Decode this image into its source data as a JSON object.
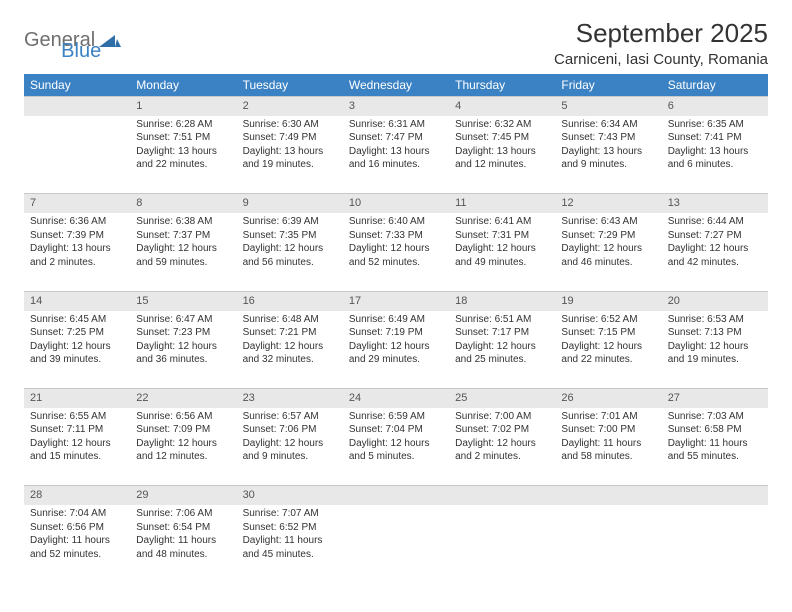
{
  "logo": {
    "part1": "General",
    "part2": "Blue"
  },
  "title": "September 2025",
  "location": "Carniceni, Iasi County, Romania",
  "colors": {
    "header_bg": "#3b82c4",
    "header_text": "#ffffff",
    "daynum_bg": "#e8e8e8",
    "daynum_border": "#c8c8c8",
    "text": "#333333",
    "logo_gray": "#6f6f6f",
    "logo_blue": "#3b82c4"
  },
  "weekdays": [
    "Sunday",
    "Monday",
    "Tuesday",
    "Wednesday",
    "Thursday",
    "Friday",
    "Saturday"
  ],
  "weeks": [
    {
      "nums": [
        "",
        "1",
        "2",
        "3",
        "4",
        "5",
        "6"
      ],
      "cells": [
        [],
        [
          "Sunrise: 6:28 AM",
          "Sunset: 7:51 PM",
          "Daylight: 13 hours",
          "and 22 minutes."
        ],
        [
          "Sunrise: 6:30 AM",
          "Sunset: 7:49 PM",
          "Daylight: 13 hours",
          "and 19 minutes."
        ],
        [
          "Sunrise: 6:31 AM",
          "Sunset: 7:47 PM",
          "Daylight: 13 hours",
          "and 16 minutes."
        ],
        [
          "Sunrise: 6:32 AM",
          "Sunset: 7:45 PM",
          "Daylight: 13 hours",
          "and 12 minutes."
        ],
        [
          "Sunrise: 6:34 AM",
          "Sunset: 7:43 PM",
          "Daylight: 13 hours",
          "and 9 minutes."
        ],
        [
          "Sunrise: 6:35 AM",
          "Sunset: 7:41 PM",
          "Daylight: 13 hours",
          "and 6 minutes."
        ]
      ]
    },
    {
      "nums": [
        "7",
        "8",
        "9",
        "10",
        "11",
        "12",
        "13"
      ],
      "cells": [
        [
          "Sunrise: 6:36 AM",
          "Sunset: 7:39 PM",
          "Daylight: 13 hours",
          "and 2 minutes."
        ],
        [
          "Sunrise: 6:38 AM",
          "Sunset: 7:37 PM",
          "Daylight: 12 hours",
          "and 59 minutes."
        ],
        [
          "Sunrise: 6:39 AM",
          "Sunset: 7:35 PM",
          "Daylight: 12 hours",
          "and 56 minutes."
        ],
        [
          "Sunrise: 6:40 AM",
          "Sunset: 7:33 PM",
          "Daylight: 12 hours",
          "and 52 minutes."
        ],
        [
          "Sunrise: 6:41 AM",
          "Sunset: 7:31 PM",
          "Daylight: 12 hours",
          "and 49 minutes."
        ],
        [
          "Sunrise: 6:43 AM",
          "Sunset: 7:29 PM",
          "Daylight: 12 hours",
          "and 46 minutes."
        ],
        [
          "Sunrise: 6:44 AM",
          "Sunset: 7:27 PM",
          "Daylight: 12 hours",
          "and 42 minutes."
        ]
      ]
    },
    {
      "nums": [
        "14",
        "15",
        "16",
        "17",
        "18",
        "19",
        "20"
      ],
      "cells": [
        [
          "Sunrise: 6:45 AM",
          "Sunset: 7:25 PM",
          "Daylight: 12 hours",
          "and 39 minutes."
        ],
        [
          "Sunrise: 6:47 AM",
          "Sunset: 7:23 PM",
          "Daylight: 12 hours",
          "and 36 minutes."
        ],
        [
          "Sunrise: 6:48 AM",
          "Sunset: 7:21 PM",
          "Daylight: 12 hours",
          "and 32 minutes."
        ],
        [
          "Sunrise: 6:49 AM",
          "Sunset: 7:19 PM",
          "Daylight: 12 hours",
          "and 29 minutes."
        ],
        [
          "Sunrise: 6:51 AM",
          "Sunset: 7:17 PM",
          "Daylight: 12 hours",
          "and 25 minutes."
        ],
        [
          "Sunrise: 6:52 AM",
          "Sunset: 7:15 PM",
          "Daylight: 12 hours",
          "and 22 minutes."
        ],
        [
          "Sunrise: 6:53 AM",
          "Sunset: 7:13 PM",
          "Daylight: 12 hours",
          "and 19 minutes."
        ]
      ]
    },
    {
      "nums": [
        "21",
        "22",
        "23",
        "24",
        "25",
        "26",
        "27"
      ],
      "cells": [
        [
          "Sunrise: 6:55 AM",
          "Sunset: 7:11 PM",
          "Daylight: 12 hours",
          "and 15 minutes."
        ],
        [
          "Sunrise: 6:56 AM",
          "Sunset: 7:09 PM",
          "Daylight: 12 hours",
          "and 12 minutes."
        ],
        [
          "Sunrise: 6:57 AM",
          "Sunset: 7:06 PM",
          "Daylight: 12 hours",
          "and 9 minutes."
        ],
        [
          "Sunrise: 6:59 AM",
          "Sunset: 7:04 PM",
          "Daylight: 12 hours",
          "and 5 minutes."
        ],
        [
          "Sunrise: 7:00 AM",
          "Sunset: 7:02 PM",
          "Daylight: 12 hours",
          "and 2 minutes."
        ],
        [
          "Sunrise: 7:01 AM",
          "Sunset: 7:00 PM",
          "Daylight: 11 hours",
          "and 58 minutes."
        ],
        [
          "Sunrise: 7:03 AM",
          "Sunset: 6:58 PM",
          "Daylight: 11 hours",
          "and 55 minutes."
        ]
      ]
    },
    {
      "nums": [
        "28",
        "29",
        "30",
        "",
        "",
        "",
        ""
      ],
      "cells": [
        [
          "Sunrise: 7:04 AM",
          "Sunset: 6:56 PM",
          "Daylight: 11 hours",
          "and 52 minutes."
        ],
        [
          "Sunrise: 7:06 AM",
          "Sunset: 6:54 PM",
          "Daylight: 11 hours",
          "and 48 minutes."
        ],
        [
          "Sunrise: 7:07 AM",
          "Sunset: 6:52 PM",
          "Daylight: 11 hours",
          "and 45 minutes."
        ],
        [],
        [],
        [],
        []
      ]
    }
  ]
}
